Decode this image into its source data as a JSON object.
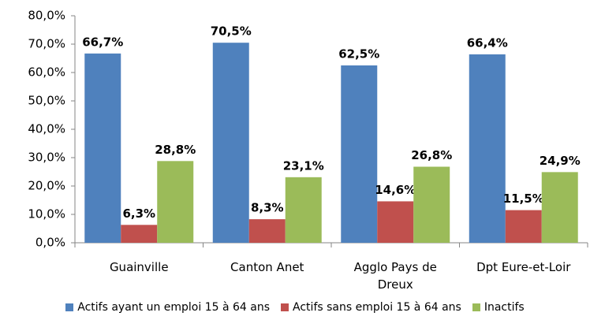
{
  "chart_data": {
    "type": "bar",
    "categories": [
      "Guainville",
      "Canton Anet",
      "Agglo Pays de Dreux",
      "Dpt Eure-et-Loir"
    ],
    "series": [
      {
        "name": "Actifs ayant un emploi 15 à 64 ans",
        "color": "#4f81bd",
        "values": [
          66.7,
          70.5,
          62.5,
          66.4
        ],
        "value_labels": [
          "66,7%",
          "70,5%",
          "62,5%",
          "66,4%"
        ]
      },
      {
        "name": "Actifs sans emploi 15 à 64 ans",
        "color": "#c0504d",
        "values": [
          6.3,
          8.3,
          14.6,
          11.5
        ],
        "value_labels": [
          "6,3%",
          "8,3%",
          "14,6%",
          "11,5%"
        ]
      },
      {
        "name": "Inactifs",
        "color": "#9bbb59",
        "values": [
          28.8,
          23.1,
          26.8,
          24.9
        ],
        "value_labels": [
          "28,8%",
          "23,1%",
          "26,8%",
          "24,9%"
        ]
      }
    ],
    "ylim": [
      0,
      80
    ],
    "yticks": [
      {
        "value": 0,
        "label": "0,0%"
      },
      {
        "value": 10,
        "label": "10,0%"
      },
      {
        "value": 20,
        "label": "20,0%"
      },
      {
        "value": 30,
        "label": "30,0%"
      },
      {
        "value": 40,
        "label": "40,0%"
      },
      {
        "value": 50,
        "label": "50,0%"
      },
      {
        "value": 60,
        "label": "60,0%"
      },
      {
        "value": 70,
        "label": "70,0%"
      },
      {
        "value": 80,
        "label": "80,0%"
      }
    ],
    "grid": false,
    "legend": "bottom"
  }
}
